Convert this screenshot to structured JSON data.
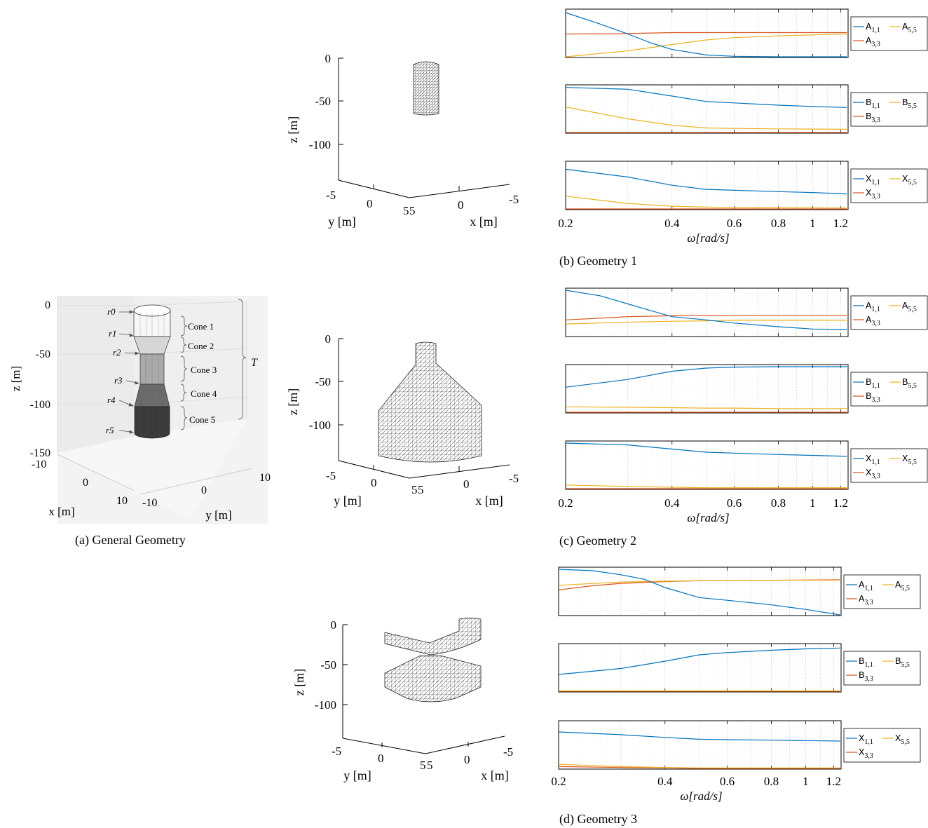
{
  "figure": {
    "captions": {
      "a": "(a)  General Geometry",
      "b": "(b)  Geometry 1",
      "c": "(c)  Geometry 2",
      "d": "(d)  Geometry 3"
    }
  },
  "general_geometry": {
    "z_ticks": [
      "0",
      "-50",
      "-100",
      "-150"
    ],
    "z_label": "z [m]",
    "x_ticks": [
      "-10",
      "0",
      "10"
    ],
    "x_label": "x [m]",
    "y_ticks": [
      "-10",
      "0",
      "10"
    ],
    "y_label": "y [m]",
    "radii_labels": [
      "r0",
      "r1",
      "r2",
      "r3",
      "r4",
      "r5"
    ],
    "cone_labels": [
      "Cone 1",
      "Cone 2",
      "Cone 3",
      "Cone 4",
      "Cone 5"
    ],
    "draft_label": "T",
    "cone_shades": [
      "#f7f7f7",
      "#d6d6d6",
      "#a9a9a9",
      "#6b6b6b",
      "#3a3a3a"
    ]
  },
  "mesh_plots": [
    {
      "id": "geometry-1",
      "z_ticks": [
        "0",
        "-50",
        "-100"
      ],
      "z_label": "z [m]",
      "y_ticks": [
        "-5",
        "0",
        "5"
      ],
      "y_label": "y [m]",
      "x_ticks": [
        "5",
        "0",
        "-5"
      ],
      "x_label": "x [m]"
    },
    {
      "id": "geometry-2",
      "z_ticks": [
        "0",
        "-50",
        "-100"
      ],
      "z_label": "z [m]",
      "y_ticks": [
        "-5",
        "0",
        "5"
      ],
      "y_label": "y [m]",
      "x_ticks": [
        "5",
        "0",
        "-5"
      ],
      "x_label": "x [m]"
    },
    {
      "id": "geometry-3",
      "z_ticks": [
        "0",
        "-50",
        "-100"
      ],
      "z_label": "z [m]",
      "y_ticks": [
        "-5",
        "0",
        "5"
      ],
      "y_label": "y [m]",
      "x_ticks": [
        "5",
        "0",
        "-5"
      ],
      "x_label": "x [m]"
    }
  ],
  "series_colors": {
    "s11": "#0072BD",
    "s33": "#D95319",
    "s55": "#EDB120"
  },
  "chart_data": [
    {
      "type": "line",
      "group": "Geometry 1",
      "x_scale": "log",
      "xlim": [
        0.2,
        1.26
      ],
      "x_ticks": [
        "0.2",
        "0.4",
        "0.6",
        "0.8",
        "1",
        "1.2"
      ],
      "xlabel": "ω[rad/s]",
      "normalized_y": true,
      "panels": [
        {
          "series": [
            {
              "name": "A1,1",
              "x": [
                0.2,
                0.25,
                0.3,
                0.35,
                0.4,
                0.5,
                0.6,
                0.8,
                1.0,
                1.25
              ],
              "y": [
                0.97,
                0.72,
                0.5,
                0.3,
                0.16,
                0.04,
                0.01,
                0.0,
                0.0,
                0.0
              ]
            },
            {
              "name": "A5,5",
              "x": [
                0.2,
                0.3,
                0.4,
                0.5,
                0.6,
                0.8,
                1.0,
                1.25
              ],
              "y": [
                0.0,
                0.13,
                0.27,
                0.37,
                0.42,
                0.46,
                0.48,
                0.5
              ]
            },
            {
              "name": "A3,3",
              "x": [
                0.2,
                0.3,
                0.4,
                0.6,
                0.8,
                1.25
              ],
              "y": [
                0.5,
                0.51,
                0.53,
                0.53,
                0.53,
                0.53
              ]
            }
          ]
        },
        {
          "series": [
            {
              "name": "B1,1",
              "x": [
                0.2,
                0.3,
                0.4,
                0.5,
                0.6,
                0.8,
                1.0,
                1.25
              ],
              "y": [
                0.99,
                0.95,
                0.8,
                0.68,
                0.65,
                0.6,
                0.57,
                0.55
              ]
            },
            {
              "name": "B5,5",
              "x": [
                0.2,
                0.3,
                0.4,
                0.5,
                0.6,
                0.8,
                1.25
              ],
              "y": [
                0.56,
                0.3,
                0.16,
                0.1,
                0.09,
                0.08,
                0.07
              ]
            },
            {
              "name": "B3,3",
              "x": [
                0.2,
                1.25
              ],
              "y": [
                0.0,
                0.0
              ]
            }
          ]
        },
        {
          "series": [
            {
              "name": "X1,1",
              "x": [
                0.2,
                0.3,
                0.4,
                0.5,
                0.6,
                0.8,
                1.0,
                1.25
              ],
              "y": [
                0.87,
                0.7,
                0.52,
                0.43,
                0.41,
                0.38,
                0.36,
                0.33
              ]
            },
            {
              "name": "X5,5",
              "x": [
                0.2,
                0.3,
                0.4,
                0.5,
                0.6,
                0.8,
                1.25
              ],
              "y": [
                0.28,
                0.12,
                0.06,
                0.04,
                0.03,
                0.03,
                0.02
              ]
            },
            {
              "name": "X3,3",
              "x": [
                0.2,
                1.25
              ],
              "y": [
                0.0,
                0.0
              ]
            }
          ]
        }
      ]
    },
    {
      "type": "line",
      "group": "Geometry 2",
      "x_scale": "log",
      "xlim": [
        0.2,
        1.26
      ],
      "x_ticks": [
        "0.2",
        "0.4",
        "0.6",
        "0.8",
        "1",
        "1.2"
      ],
      "xlabel": "ω[rad/s]",
      "normalized_y": true,
      "panels": [
        {
          "series": [
            {
              "name": "A1,1",
              "x": [
                0.2,
                0.25,
                0.3,
                0.35,
                0.4,
                0.5,
                0.6,
                0.8,
                1.0,
                1.25
              ],
              "y": [
                1.0,
                0.88,
                0.7,
                0.55,
                0.42,
                0.35,
                0.28,
                0.2,
                0.15,
                0.14
              ]
            },
            {
              "name": "A5,5",
              "x": [
                0.2,
                0.3,
                0.4,
                0.5,
                0.6,
                0.8,
                1.25
              ],
              "y": [
                0.26,
                0.3,
                0.32,
                0.33,
                0.34,
                0.34,
                0.34
              ]
            },
            {
              "name": "A3,3",
              "x": [
                0.2,
                0.3,
                0.4,
                0.5,
                0.6,
                0.8,
                1.25
              ],
              "y": [
                0.35,
                0.42,
                0.44,
                0.45,
                0.45,
                0.45,
                0.45
              ]
            }
          ]
        },
        {
          "series": [
            {
              "name": "B1,1",
              "x": [
                0.2,
                0.3,
                0.4,
                0.5,
                0.6,
                0.8,
                1.0,
                1.25
              ],
              "y": [
                0.55,
                0.72,
                0.9,
                0.97,
                0.99,
                1.0,
                1.0,
                1.0
              ]
            },
            {
              "name": "B5,5",
              "x": [
                0.2,
                0.3,
                0.4,
                0.5,
                0.6,
                0.8,
                1.25
              ],
              "y": [
                0.12,
                0.11,
                0.1,
                0.09,
                0.09,
                0.08,
                0.08
              ]
            },
            {
              "name": "B3,3",
              "x": [
                0.2,
                1.25
              ],
              "y": [
                0.0,
                0.0
              ]
            }
          ]
        },
        {
          "series": [
            {
              "name": "X1,1",
              "x": [
                0.2,
                0.3,
                0.4,
                0.5,
                0.6,
                0.8,
                1.0,
                1.25
              ],
              "y": [
                1.0,
                0.96,
                0.87,
                0.8,
                0.78,
                0.75,
                0.73,
                0.71
              ]
            },
            {
              "name": "X5,5",
              "x": [
                0.2,
                0.3,
                0.4,
                0.5,
                0.6,
                0.8,
                1.25
              ],
              "y": [
                0.08,
                0.05,
                0.03,
                0.02,
                0.02,
                0.02,
                0.02
              ]
            },
            {
              "name": "X3,3",
              "x": [
                0.2,
                1.25
              ],
              "y": [
                0.0,
                0.0
              ]
            }
          ]
        }
      ]
    },
    {
      "type": "line",
      "group": "Geometry 3",
      "x_scale": "log",
      "xlim": [
        0.2,
        1.26
      ],
      "x_ticks": [
        "0.2",
        "0.4",
        "0.6",
        "0.8",
        "1",
        "1.2"
      ],
      "xlabel": "ω[rad/s]",
      "normalized_y": true,
      "panels": [
        {
          "series": [
            {
              "name": "A1,1",
              "x": [
                0.2,
                0.25,
                0.3,
                0.35,
                0.4,
                0.5,
                0.6,
                0.8,
                1.0,
                1.25
              ],
              "y": [
                1.0,
                0.97,
                0.88,
                0.78,
                0.6,
                0.38,
                0.32,
                0.22,
                0.12,
                0.0
              ]
            },
            {
              "name": "A5,5",
              "x": [
                0.2,
                0.3,
                0.4,
                0.5,
                0.6,
                0.8,
                1.25
              ],
              "y": [
                0.65,
                0.72,
                0.74,
                0.75,
                0.76,
                0.76,
                0.76
              ]
            },
            {
              "name": "A3,3",
              "x": [
                0.2,
                0.25,
                0.3,
                0.4,
                0.5,
                0.6,
                0.8,
                1.25
              ],
              "y": [
                0.55,
                0.64,
                0.69,
                0.73,
                0.75,
                0.76,
                0.76,
                0.77
              ]
            }
          ]
        },
        {
          "series": [
            {
              "name": "B1,1",
              "x": [
                0.2,
                0.3,
                0.4,
                0.5,
                0.6,
                0.8,
                1.0,
                1.25
              ],
              "y": [
                0.37,
                0.5,
                0.66,
                0.8,
                0.85,
                0.9,
                0.93,
                0.95
              ]
            },
            {
              "name": "B5,5",
              "x": [
                0.2,
                0.4,
                0.6,
                0.8,
                1.25
              ],
              "y": [
                0.01,
                0.01,
                0.01,
                0.01,
                0.01
              ]
            },
            {
              "name": "B3,3",
              "x": [
                0.2,
                1.25
              ],
              "y": [
                0.0,
                0.0
              ]
            }
          ]
        },
        {
          "series": [
            {
              "name": "X1,1",
              "x": [
                0.2,
                0.3,
                0.4,
                0.5,
                0.6,
                0.8,
                1.0,
                1.25
              ],
              "y": [
                0.8,
                0.74,
                0.68,
                0.64,
                0.63,
                0.62,
                0.61,
                0.6
              ]
            },
            {
              "name": "X5,5",
              "x": [
                0.2,
                0.3,
                0.4,
                0.5,
                0.6,
                0.8,
                1.25
              ],
              "y": [
                0.09,
                0.04,
                0.02,
                0.01,
                0.01,
                0.01,
                0.01
              ]
            },
            {
              "name": "X3,3",
              "x": [
                0.2,
                0.3,
                0.4,
                0.5,
                0.6,
                0.8,
                1.25
              ],
              "y": [
                0.04,
                0.02,
                0.01,
                0.0,
                0.0,
                0.0,
                0.0
              ]
            }
          ]
        }
      ]
    }
  ]
}
